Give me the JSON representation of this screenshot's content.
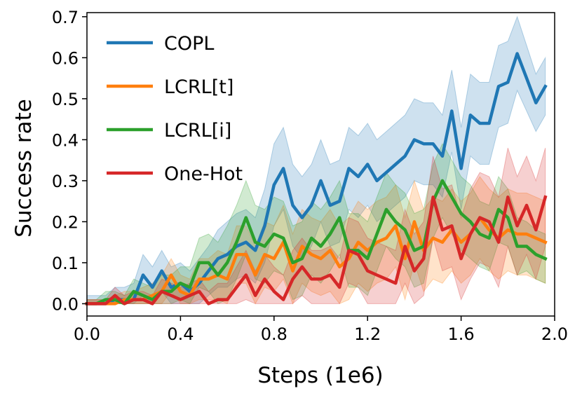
{
  "chart_data": {
    "type": "line",
    "title": "",
    "xlabel": "Steps (1e6)",
    "ylabel": "Success rate",
    "xlim": [
      0.0,
      2.0
    ],
    "ylim": [
      -0.03,
      0.71
    ],
    "xticks": [
      0.0,
      0.4,
      0.8,
      1.2,
      1.6,
      2.0
    ],
    "xtick_labels": [
      "0.0",
      "0.4",
      "0.8",
      "1.2",
      "1.6",
      "2.0"
    ],
    "yticks": [
      0.0,
      0.1,
      0.2,
      0.3,
      0.4,
      0.5,
      0.6,
      0.7
    ],
    "ytick_labels": [
      "0.0",
      "0.1",
      "0.2",
      "0.3",
      "0.4",
      "0.5",
      "0.6",
      "0.7"
    ],
    "grid": false,
    "legend_position": "top-left",
    "shaded_band": "variance band around each series mean",
    "x": [
      0.0,
      0.04,
      0.08,
      0.12,
      0.16,
      0.2,
      0.24,
      0.28,
      0.32,
      0.36,
      0.4,
      0.44,
      0.48,
      0.52,
      0.56,
      0.6,
      0.64,
      0.68,
      0.72,
      0.76,
      0.8,
      0.84,
      0.88,
      0.92,
      0.96,
      1.0,
      1.04,
      1.08,
      1.12,
      1.16,
      1.2,
      1.24,
      1.28,
      1.32,
      1.36,
      1.4,
      1.44,
      1.48,
      1.52,
      1.56,
      1.6,
      1.64,
      1.68,
      1.72,
      1.76,
      1.8,
      1.84,
      1.88,
      1.92,
      1.96
    ],
    "series": [
      {
        "name": "COPL",
        "color": "#1f77b4",
        "values": [
          0.0,
          0.0,
          0.0,
          0.01,
          0.01,
          0.01,
          0.07,
          0.04,
          0.08,
          0.04,
          0.05,
          0.03,
          0.05,
          0.08,
          0.11,
          0.12,
          0.14,
          0.15,
          0.13,
          0.19,
          0.29,
          0.33,
          0.24,
          0.21,
          0.24,
          0.3,
          0.24,
          0.25,
          0.33,
          0.31,
          0.34,
          0.3,
          0.32,
          0.34,
          0.36,
          0.4,
          0.39,
          0.39,
          0.36,
          0.47,
          0.33,
          0.46,
          0.44,
          0.44,
          0.53,
          0.54,
          0.61,
          0.55,
          0.49,
          0.53
        ],
        "band": [
          0.02,
          0.02,
          0.02,
          0.03,
          0.03,
          0.04,
          0.05,
          0.05,
          0.05,
          0.05,
          0.05,
          0.05,
          0.06,
          0.06,
          0.07,
          0.08,
          0.08,
          0.08,
          0.08,
          0.09,
          0.1,
          0.1,
          0.1,
          0.1,
          0.1,
          0.1,
          0.1,
          0.1,
          0.1,
          0.1,
          0.1,
          0.1,
          0.1,
          0.1,
          0.1,
          0.1,
          0.1,
          0.1,
          0.1,
          0.1,
          0.1,
          0.1,
          0.1,
          0.1,
          0.1,
          0.1,
          0.09,
          0.08,
          0.07,
          0.07
        ]
      },
      {
        "name": "LCRL[t]",
        "color": "#ff7f0e",
        "values": [
          0.0,
          0.0,
          0.0,
          0.0,
          0.01,
          0.01,
          0.01,
          0.02,
          0.03,
          0.07,
          0.03,
          0.02,
          0.06,
          0.06,
          0.07,
          0.06,
          0.12,
          0.12,
          0.07,
          0.12,
          0.11,
          0.15,
          0.08,
          0.14,
          0.12,
          0.11,
          0.13,
          0.09,
          0.11,
          0.15,
          0.13,
          0.15,
          0.16,
          0.19,
          0.11,
          0.2,
          0.13,
          0.16,
          0.15,
          0.18,
          0.15,
          0.17,
          0.21,
          0.18,
          0.16,
          0.18,
          0.17,
          0.17,
          0.16,
          0.15
        ],
        "band": [
          0.01,
          0.01,
          0.01,
          0.02,
          0.02,
          0.02,
          0.03,
          0.03,
          0.04,
          0.04,
          0.04,
          0.04,
          0.05,
          0.05,
          0.06,
          0.06,
          0.07,
          0.07,
          0.07,
          0.08,
          0.08,
          0.09,
          0.09,
          0.09,
          0.09,
          0.09,
          0.1,
          0.1,
          0.1,
          0.1,
          0.1,
          0.1,
          0.1,
          0.1,
          0.1,
          0.1,
          0.1,
          0.1,
          0.1,
          0.1,
          0.1,
          0.1,
          0.1,
          0.1,
          0.1,
          0.1,
          0.1,
          0.1,
          0.1,
          0.1
        ]
      },
      {
        "name": "LCRL[i]",
        "color": "#2ca02c",
        "values": [
          0.0,
          0.0,
          0.01,
          0.01,
          0.0,
          0.03,
          0.02,
          0.01,
          0.03,
          0.03,
          0.05,
          0.04,
          0.1,
          0.1,
          0.07,
          0.1,
          0.15,
          0.21,
          0.15,
          0.14,
          0.17,
          0.16,
          0.1,
          0.11,
          0.16,
          0.14,
          0.17,
          0.21,
          0.13,
          0.13,
          0.11,
          0.17,
          0.23,
          0.2,
          0.18,
          0.13,
          0.14,
          0.25,
          0.3,
          0.26,
          0.22,
          0.2,
          0.17,
          0.16,
          0.23,
          0.21,
          0.14,
          0.14,
          0.12,
          0.11
        ],
        "band": [
          0.01,
          0.01,
          0.02,
          0.02,
          0.02,
          0.03,
          0.03,
          0.03,
          0.04,
          0.04,
          0.04,
          0.05,
          0.06,
          0.07,
          0.08,
          0.09,
          0.09,
          0.09,
          0.09,
          0.09,
          0.09,
          0.09,
          0.09,
          0.09,
          0.09,
          0.09,
          0.09,
          0.09,
          0.09,
          0.09,
          0.09,
          0.09,
          0.09,
          0.09,
          0.09,
          0.09,
          0.09,
          0.09,
          0.09,
          0.09,
          0.09,
          0.09,
          0.08,
          0.08,
          0.08,
          0.07,
          0.07,
          0.06,
          0.06,
          0.06
        ]
      },
      {
        "name": "One-Hot",
        "color": "#d62728",
        "values": [
          0.0,
          0.0,
          0.0,
          0.02,
          0.0,
          0.01,
          0.01,
          0.0,
          0.03,
          0.02,
          0.01,
          0.02,
          0.03,
          0.0,
          0.01,
          0.01,
          0.04,
          0.07,
          0.02,
          0.06,
          0.03,
          0.01,
          0.06,
          0.09,
          0.06,
          0.06,
          0.07,
          0.04,
          0.13,
          0.12,
          0.08,
          0.07,
          0.06,
          0.05,
          0.14,
          0.08,
          0.11,
          0.26,
          0.18,
          0.19,
          0.11,
          0.17,
          0.21,
          0.2,
          0.15,
          0.26,
          0.19,
          0.24,
          0.18,
          0.26
        ],
        "band": [
          0.01,
          0.01,
          0.01,
          0.02,
          0.02,
          0.02,
          0.02,
          0.02,
          0.03,
          0.03,
          0.03,
          0.03,
          0.03,
          0.03,
          0.04,
          0.04,
          0.05,
          0.06,
          0.06,
          0.06,
          0.06,
          0.06,
          0.07,
          0.07,
          0.07,
          0.07,
          0.07,
          0.07,
          0.08,
          0.08,
          0.08,
          0.08,
          0.08,
          0.08,
          0.09,
          0.09,
          0.09,
          0.1,
          0.1,
          0.1,
          0.1,
          0.11,
          0.11,
          0.11,
          0.11,
          0.12,
          0.12,
          0.12,
          0.12,
          0.12
        ]
      }
    ]
  }
}
